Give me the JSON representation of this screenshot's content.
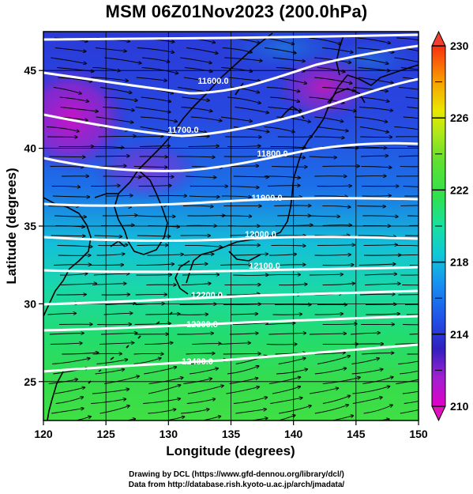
{
  "title": "MSM 06Z01Nov2023 (200.0hPa)",
  "chart_data": {
    "type": "heatmap",
    "x_axis": {
      "label": "Longitude (degrees)",
      "range": [
        120,
        150
      ],
      "ticks": [
        "120",
        "125",
        "130",
        "135",
        "140",
        "145",
        "150"
      ]
    },
    "y_axis": {
      "label": "Latitude  (degrees)",
      "range": [
        22.5,
        47.5
      ],
      "ticks": [
        "25",
        "30",
        "35",
        "40",
        "45"
      ]
    },
    "colorbar": {
      "range": [
        210,
        230
      ],
      "ticks": [
        "210",
        "214",
        "218",
        "222",
        "226",
        "230"
      ],
      "colors": [
        "#d400d4",
        "#3020c8",
        "#2060e8",
        "#10c8d8",
        "#20e880",
        "#40e040",
        "#a0e820",
        "#e8e800",
        "#f8a000",
        "#f83000"
      ]
    },
    "contours": [
      {
        "label": "11600.0"
      },
      {
        "label": "11700.0"
      },
      {
        "label": "11800.0"
      },
      {
        "label": "11900.0"
      },
      {
        "label": "12000.0"
      },
      {
        "label": "12100.0"
      },
      {
        "label": "12200.0"
      },
      {
        "label": "12300.0"
      },
      {
        "label": "12400.0"
      }
    ]
  },
  "credits": {
    "line1": "Drawing by DCL (https://www.gfd-dennou.org/library/dcl/)",
    "line2": "Data from http://database.rish.kyoto-u.ac.jp/arch/jmadata/"
  }
}
